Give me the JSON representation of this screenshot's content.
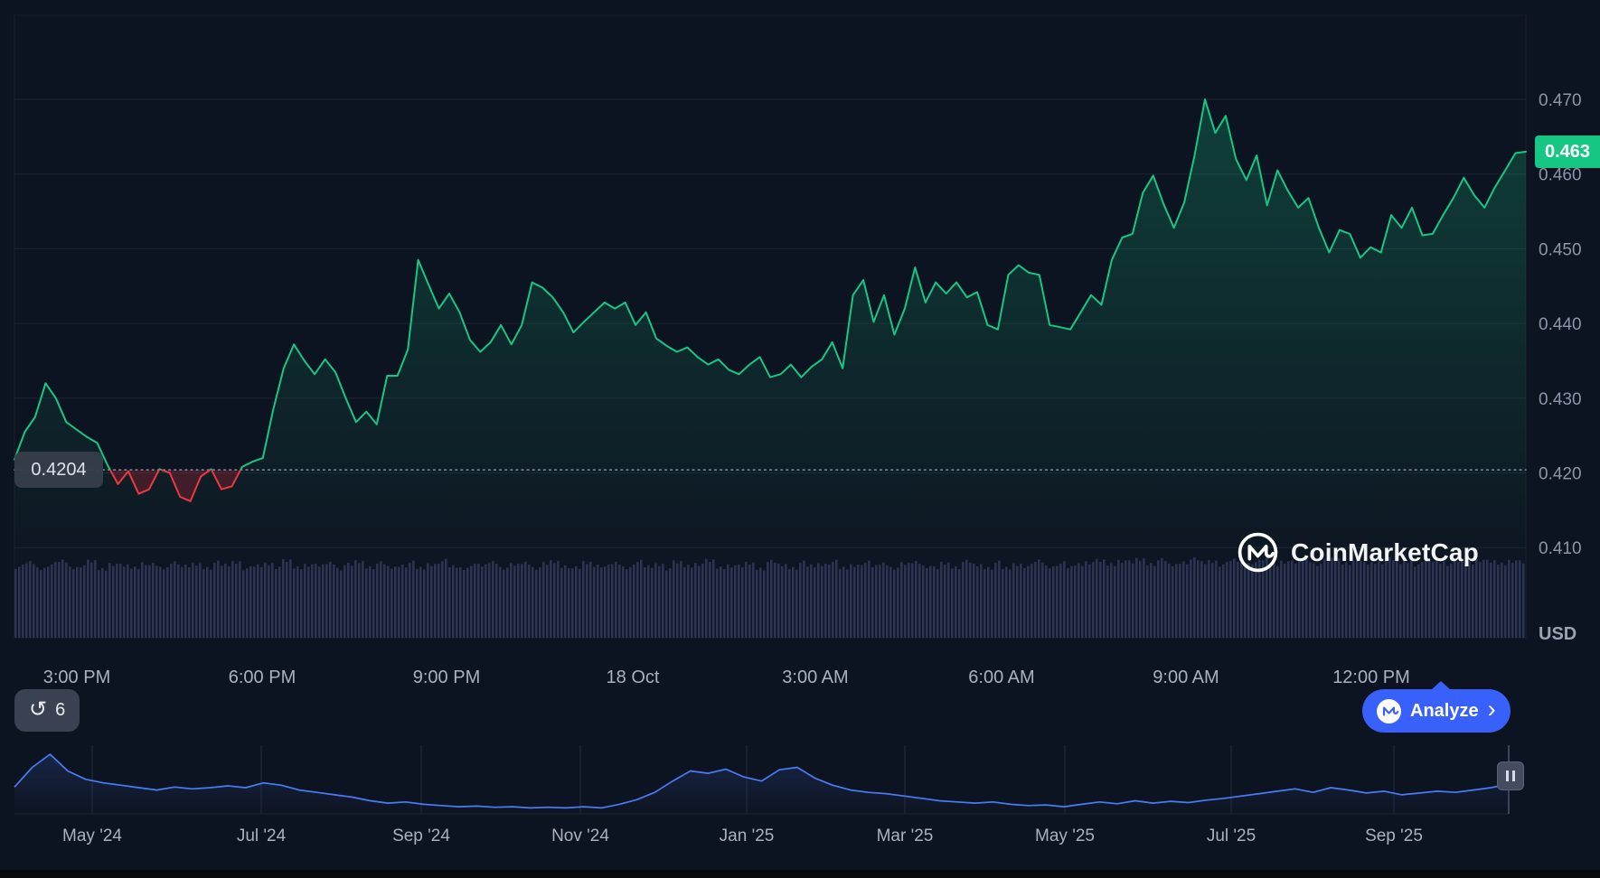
{
  "colors": {
    "background": "#0D1421",
    "up": "#16C784",
    "down": "#EA3943",
    "up_fill_top": "rgba(22,199,132,0.25)",
    "down_fill": "rgba(234,57,67,0.24)",
    "volume_bar": "#2C3453",
    "navigator_line": "#4A7BF7",
    "navigator_fill": "rgba(74,123,247,0.16)",
    "accent_blue": "#3861FB",
    "grid": "#1C2432",
    "plot_border": "rgba(255,255,255,0.05)",
    "baseline": "#7E879B",
    "axis_text": "#8E95A8",
    "time_text": "#A9B0C1"
  },
  "chart_data": [
    {
      "id": "price-main",
      "type": "line",
      "unit": "USD",
      "current_price": 0.463,
      "current_price_label": "0.463",
      "previous_close": 0.4204,
      "previous_close_label": "0.4204",
      "ylim": [
        0.406,
        0.4815
      ],
      "y_ticks": [
        "0.470",
        "0.460",
        "0.450",
        "0.440",
        "0.430",
        "0.420",
        "0.410"
      ],
      "y_tick_values": [
        0.47,
        0.46,
        0.45,
        0.44,
        0.43,
        0.42,
        0.41
      ],
      "x_ticks": [
        {
          "label": "3:00 PM",
          "pos": 0.041
        },
        {
          "label": "6:00 PM",
          "pos": 0.164
        },
        {
          "label": "9:00 PM",
          "pos": 0.286
        },
        {
          "label": "18 Oct",
          "pos": 0.409
        },
        {
          "label": "3:00 AM",
          "pos": 0.53
        },
        {
          "label": "6:00 AM",
          "pos": 0.653
        },
        {
          "label": "9:00 AM",
          "pos": 0.775
        },
        {
          "label": "12:00 PM",
          "pos": 0.898
        }
      ],
      "time_interval_minutes": 10,
      "prices": [
        0.4218,
        0.4255,
        0.4275,
        0.432,
        0.43,
        0.4268,
        0.4258,
        0.4248,
        0.424,
        0.421,
        0.4185,
        0.4202,
        0.4172,
        0.4178,
        0.4205,
        0.42,
        0.4168,
        0.4162,
        0.4195,
        0.4205,
        0.4178,
        0.4182,
        0.4208,
        0.4215,
        0.422,
        0.4285,
        0.434,
        0.4372,
        0.435,
        0.4332,
        0.4352,
        0.4335,
        0.43,
        0.4268,
        0.4282,
        0.4265,
        0.433,
        0.433,
        0.4365,
        0.4485,
        0.4452,
        0.442,
        0.444,
        0.4415,
        0.4378,
        0.4362,
        0.4375,
        0.4398,
        0.4372,
        0.4398,
        0.4455,
        0.4448,
        0.4435,
        0.4415,
        0.4388,
        0.4402,
        0.4415,
        0.4428,
        0.442,
        0.4428,
        0.4398,
        0.4415,
        0.438,
        0.437,
        0.4362,
        0.4368,
        0.4355,
        0.4345,
        0.4352,
        0.4338,
        0.4332,
        0.4345,
        0.4355,
        0.4328,
        0.4332,
        0.4345,
        0.4328,
        0.4342,
        0.4352,
        0.4375,
        0.434,
        0.4438,
        0.4458,
        0.4402,
        0.4438,
        0.4385,
        0.442,
        0.4475,
        0.4428,
        0.4455,
        0.444,
        0.4455,
        0.4435,
        0.4442,
        0.4398,
        0.4392,
        0.4465,
        0.4478,
        0.4468,
        0.4465,
        0.4398,
        0.4395,
        0.4392,
        0.4415,
        0.4438,
        0.4425,
        0.4485,
        0.4515,
        0.452,
        0.4575,
        0.4598,
        0.456,
        0.4528,
        0.4562,
        0.4625,
        0.47,
        0.4655,
        0.4678,
        0.462,
        0.4592,
        0.4625,
        0.4558,
        0.4605,
        0.4578,
        0.4555,
        0.4568,
        0.4528,
        0.4495,
        0.4525,
        0.452,
        0.4488,
        0.4502,
        0.4495,
        0.4545,
        0.4528,
        0.4555,
        0.4518,
        0.452,
        0.4545,
        0.4568,
        0.4595,
        0.4572,
        0.4555,
        0.4582,
        0.4605,
        0.4628,
        0.463
      ],
      "volumes": [
        0.9,
        0.95,
        0.88,
        0.93,
        0.97,
        0.89,
        0.92,
        0.96,
        0.87,
        0.94,
        0.91,
        0.89,
        0.95,
        0.92,
        0.88,
        0.96,
        0.9,
        0.93,
        0.89,
        0.95,
        0.92,
        0.96,
        0.88,
        0.91,
        0.94,
        0.9,
        0.97,
        0.89,
        0.93,
        0.91,
        0.95,
        0.88,
        0.92,
        0.96,
        0.9,
        0.94,
        0.89,
        0.92,
        0.95,
        0.88,
        0.93,
        0.97,
        0.9,
        0.88,
        0.94,
        0.91,
        0.96,
        0.89,
        0.92,
        0.95,
        0.89,
        0.93,
        0.96,
        0.91,
        0.88,
        0.95,
        0.92,
        0.9,
        0.94,
        0.89,
        0.96,
        0.9,
        0.93,
        0.88,
        0.95,
        0.91,
        0.94,
        0.97,
        0.89,
        0.92,
        0.9,
        0.94,
        0.88,
        0.96,
        0.92,
        0.89,
        0.95,
        0.91,
        0.93,
        0.96,
        0.88,
        0.92,
        0.95,
        0.9,
        0.94,
        0.89,
        0.93,
        0.96,
        0.91,
        0.88,
        0.94,
        0.9,
        0.96,
        0.92,
        0.89,
        0.95,
        0.88,
        0.93,
        0.91,
        0.97,
        0.9,
        0.94,
        0.89,
        0.93,
        0.96,
        0.97,
        0.93,
        0.98,
        0.95,
        0.99,
        0.94,
        0.98,
        0.92,
        0.96,
        0.99,
        0.95,
        0.97,
        0.93,
        0.98,
        0.94,
        0.96,
        0.99,
        0.93,
        0.97,
        0.95,
        0.98,
        0.94,
        0.97,
        0.99,
        0.95,
        0.98,
        0.94,
        0.96,
        0.99,
        0.95,
        0.97,
        0.93,
        0.98,
        0.96,
        0.94,
        0.97,
        0.95,
        0.99,
        0.96,
        0.94,
        0.98,
        0.95
      ]
    },
    {
      "id": "navigator",
      "type": "area",
      "x_ticks": [
        {
          "label": "May '24",
          "pos": 0.052
        },
        {
          "label": "Jul '24",
          "pos": 0.165
        },
        {
          "label": "Sep '24",
          "pos": 0.272
        },
        {
          "label": "Nov '24",
          "pos": 0.379
        },
        {
          "label": "Jan '25",
          "pos": 0.49
        },
        {
          "label": "Mar '25",
          "pos": 0.596
        },
        {
          "label": "May '25",
          "pos": 0.703
        },
        {
          "label": "Jul '25",
          "pos": 0.814
        },
        {
          "label": "Sep '25",
          "pos": 0.923
        }
      ],
      "gridline_pos": [
        0.052,
        0.165,
        0.272,
        0.379,
        0.49,
        0.596,
        0.703,
        0.814,
        0.923
      ],
      "values": [
        0.45,
        0.78,
        1.0,
        0.72,
        0.58,
        0.52,
        0.48,
        0.44,
        0.4,
        0.45,
        0.42,
        0.44,
        0.47,
        0.44,
        0.52,
        0.48,
        0.4,
        0.36,
        0.32,
        0.28,
        0.22,
        0.18,
        0.2,
        0.16,
        0.14,
        0.12,
        0.13,
        0.11,
        0.12,
        0.1,
        0.11,
        0.1,
        0.12,
        0.1,
        0.16,
        0.24,
        0.36,
        0.55,
        0.72,
        0.68,
        0.75,
        0.62,
        0.55,
        0.74,
        0.78,
        0.6,
        0.48,
        0.4,
        0.36,
        0.34,
        0.3,
        0.26,
        0.22,
        0.2,
        0.18,
        0.2,
        0.16,
        0.14,
        0.15,
        0.12,
        0.16,
        0.2,
        0.17,
        0.22,
        0.18,
        0.21,
        0.19,
        0.23,
        0.26,
        0.3,
        0.34,
        0.38,
        0.42,
        0.36,
        0.44,
        0.4,
        0.35,
        0.38,
        0.32,
        0.35,
        0.38,
        0.36,
        0.4,
        0.44,
        0.5
      ]
    }
  ],
  "overlay": {
    "usd_label": "USD",
    "history_count": "6",
    "analyze_label": "Analyze",
    "watermark_text": "CoinMarketCap"
  }
}
